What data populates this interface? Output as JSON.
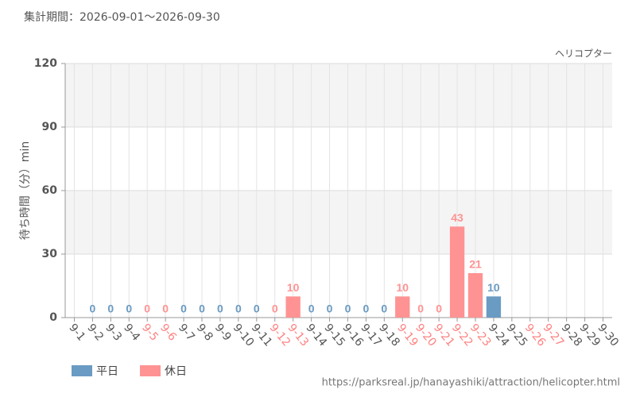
{
  "chart_data": {
    "type": "bar",
    "title": "集計期間：2026-09-01～2026-09-30",
    "subtitle": "ヘリコプター",
    "y_label": "待ち時間（分）min",
    "source": "https://parksreal.jp/hanayashiki/attraction/helicopter.html",
    "categories": [
      "9-1",
      "9-2",
      "9-3",
      "9-4",
      "9-5",
      "9-6",
      "9-7",
      "9-8",
      "9-9",
      "9-10",
      "9-11",
      "9-12",
      "9-13",
      "9-14",
      "9-15",
      "9-16",
      "9-17",
      "9-18",
      "9-19",
      "9-20",
      "9-21",
      "9-22",
      "9-23",
      "9-24",
      "9-25",
      "9-26",
      "9-27",
      "9-28",
      "9-29",
      "9-30"
    ],
    "category_colors": [
      "#555",
      "#555",
      "#555",
      "#555",
      "#ff8080",
      "#ff8080",
      "#555",
      "#555",
      "#555",
      "#555",
      "#555",
      "#ff8080",
      "#ff8080",
      "#555",
      "#555",
      "#555",
      "#555",
      "#555",
      "#ff8080",
      "#ff8080",
      "#ff8080",
      "#ff8080",
      "#ff8080",
      "#555",
      "#555",
      "#ff8080",
      "#ff8080",
      "#555",
      "#555",
      "#555"
    ],
    "series": [
      {
        "name": "平日",
        "color": "#6a9bc3",
        "values": [
          null,
          0,
          0,
          0,
          null,
          null,
          0,
          0,
          0,
          0,
          0,
          null,
          null,
          0,
          0,
          0,
          0,
          0,
          null,
          null,
          null,
          null,
          null,
          10,
          null,
          null,
          null,
          null,
          null,
          null
        ]
      },
      {
        "name": "休日",
        "color": "#ff9393",
        "values": [
          null,
          null,
          null,
          null,
          0,
          0,
          null,
          null,
          null,
          null,
          null,
          0,
          10,
          null,
          null,
          null,
          null,
          null,
          10,
          0,
          0,
          43,
          21,
          null,
          null,
          null,
          null,
          null,
          null,
          null
        ]
      }
    ],
    "ylim": [
      0,
      120
    ],
    "yticks": [
      0,
      30,
      60,
      90,
      120
    ],
    "grid": true
  }
}
